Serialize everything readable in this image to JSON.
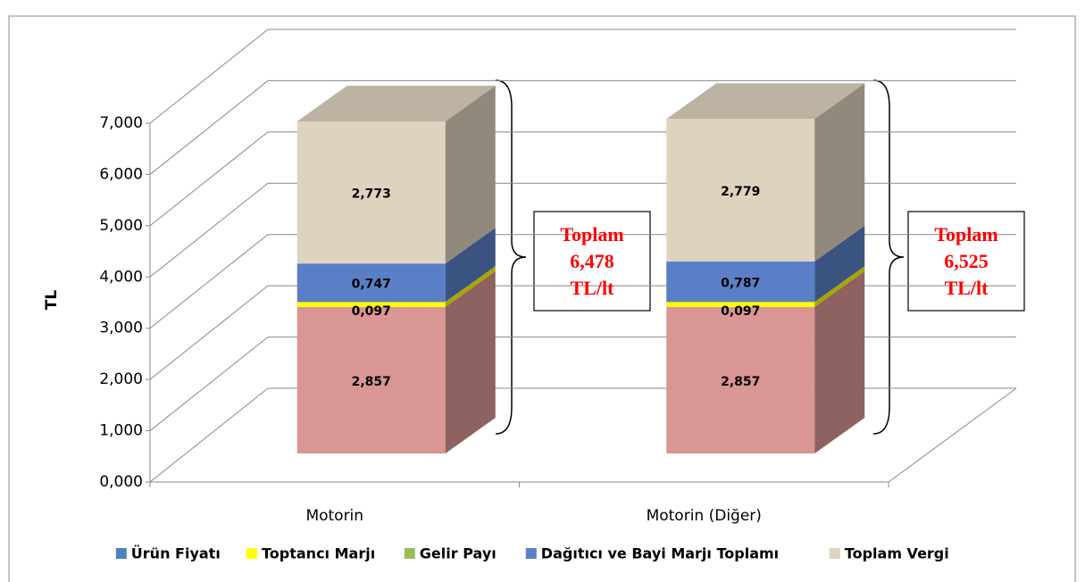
{
  "chart_data": {
    "type": "bar3d_stacked",
    "y_axis_label": "TL",
    "categories": [
      "Motorin",
      "Motorin (Diğer)"
    ],
    "series": [
      {
        "name": "Ürün Fiyatı",
        "color": "#d99694",
        "legend_color": "#4f81bd",
        "values": [
          2.857,
          2.857
        ],
        "value_labels": [
          "2,857",
          "2,857"
        ]
      },
      {
        "name": "Toptancı Marjı",
        "color": "#ffff00",
        "values": [
          0.097,
          0.097
        ],
        "value_labels": [
          "0,097",
          "0,097"
        ]
      },
      {
        "name": "Gelir Payı",
        "color": "#9bbb59",
        "values": [
          0.004,
          0.005
        ]
      },
      {
        "name": "Dağıtıcı ve Bayi Marjı Toplamı",
        "color": "#5b7fc7",
        "values": [
          0.747,
          0.787
        ],
        "value_labels": [
          "0,747",
          "0,787"
        ]
      },
      {
        "name": "Toplam Vergi",
        "color": "#ddd3bf",
        "values": [
          2.773,
          2.779
        ],
        "value_labels": [
          "2,773",
          "2,779"
        ]
      }
    ],
    "annotations": [
      {
        "lines": [
          "Toplam",
          "6,478",
          "TL/lt"
        ]
      },
      {
        "lines": [
          "Toplam",
          "6,525",
          "TL/lt"
        ]
      }
    ],
    "ylim": [
      0,
      7
    ],
    "yticks": [
      {
        "value": 0,
        "label": "0,000"
      },
      {
        "value": 1,
        "label": "1,000"
      },
      {
        "value": 2,
        "label": "2,000"
      },
      {
        "value": 3,
        "label": "3,000"
      },
      {
        "value": 4,
        "label": "4,000"
      },
      {
        "value": 5,
        "label": "5,000"
      },
      {
        "value": 6,
        "label": "6,000"
      },
      {
        "value": 7,
        "label": "7,000"
      }
    ],
    "grid": true,
    "legend": "bottom"
  }
}
